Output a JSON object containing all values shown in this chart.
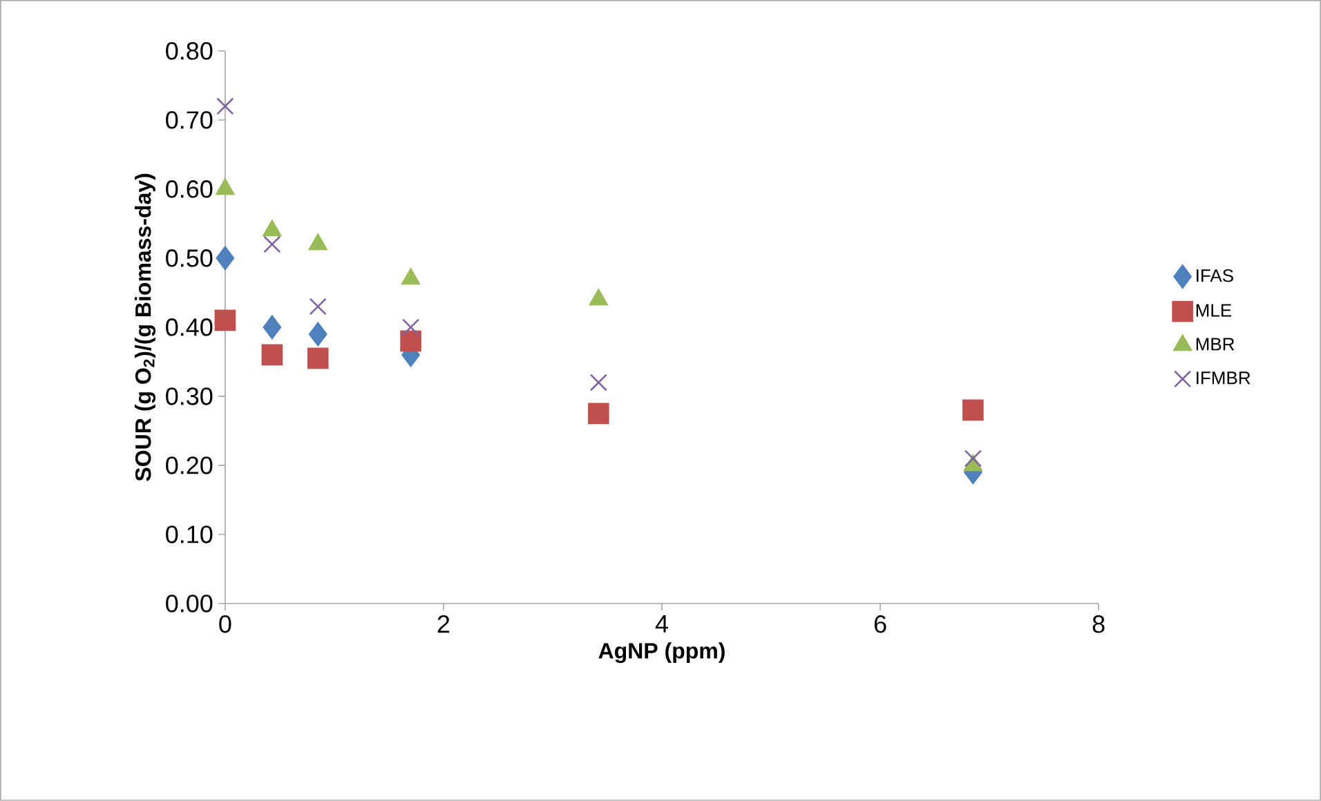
{
  "chart_data": {
    "type": "scatter",
    "xlabel": "AgNP (ppm)",
    "ylabel": "SOUR (g O$_{2}$)/(g Biomass-day)",
    "x": [
      0,
      0.43,
      0.85,
      1.7,
      3.42,
      6.85
    ],
    "series": [
      {
        "name": "IFAS",
        "color": "#4f81bd",
        "marker": "diamond",
        "values": [
          0.5,
          0.4,
          0.39,
          0.36,
          null,
          0.19
        ]
      },
      {
        "name": "MLE",
        "color": "#c0504d",
        "marker": "square",
        "values": [
          0.41,
          0.36,
          0.355,
          0.38,
          0.275,
          0.28
        ]
      },
      {
        "name": "MBR",
        "color": "#9bbb59",
        "marker": "triangle",
        "values": [
          0.6,
          0.54,
          0.52,
          0.47,
          0.44,
          0.2
        ]
      },
      {
        "name": "IFMBR",
        "color": "#8064a2",
        "marker": "cross",
        "values": [
          0.72,
          0.52,
          0.43,
          0.4,
          0.32,
          0.21
        ]
      }
    ],
    "xlim": [
      0,
      8
    ],
    "xticks": [
      0,
      2,
      4,
      6,
      8
    ],
    "ylim": [
      0,
      0.8
    ],
    "yticks": [
      {
        "value": 0,
        "label": "0.00"
      },
      {
        "value": 0.1,
        "label": "0.10"
      },
      {
        "value": 0.2,
        "label": "0.20"
      },
      {
        "value": 0.3,
        "label": "0.30"
      },
      {
        "value": 0.4,
        "label": "0.40"
      },
      {
        "value": 0.5,
        "label": "0.50"
      },
      {
        "value": 0.6,
        "label": "0.60"
      },
      {
        "value": 0.7,
        "label": "0.70"
      },
      {
        "value": 0.8,
        "label": "0.80"
      }
    ],
    "grid": false,
    "legend": "right"
  }
}
